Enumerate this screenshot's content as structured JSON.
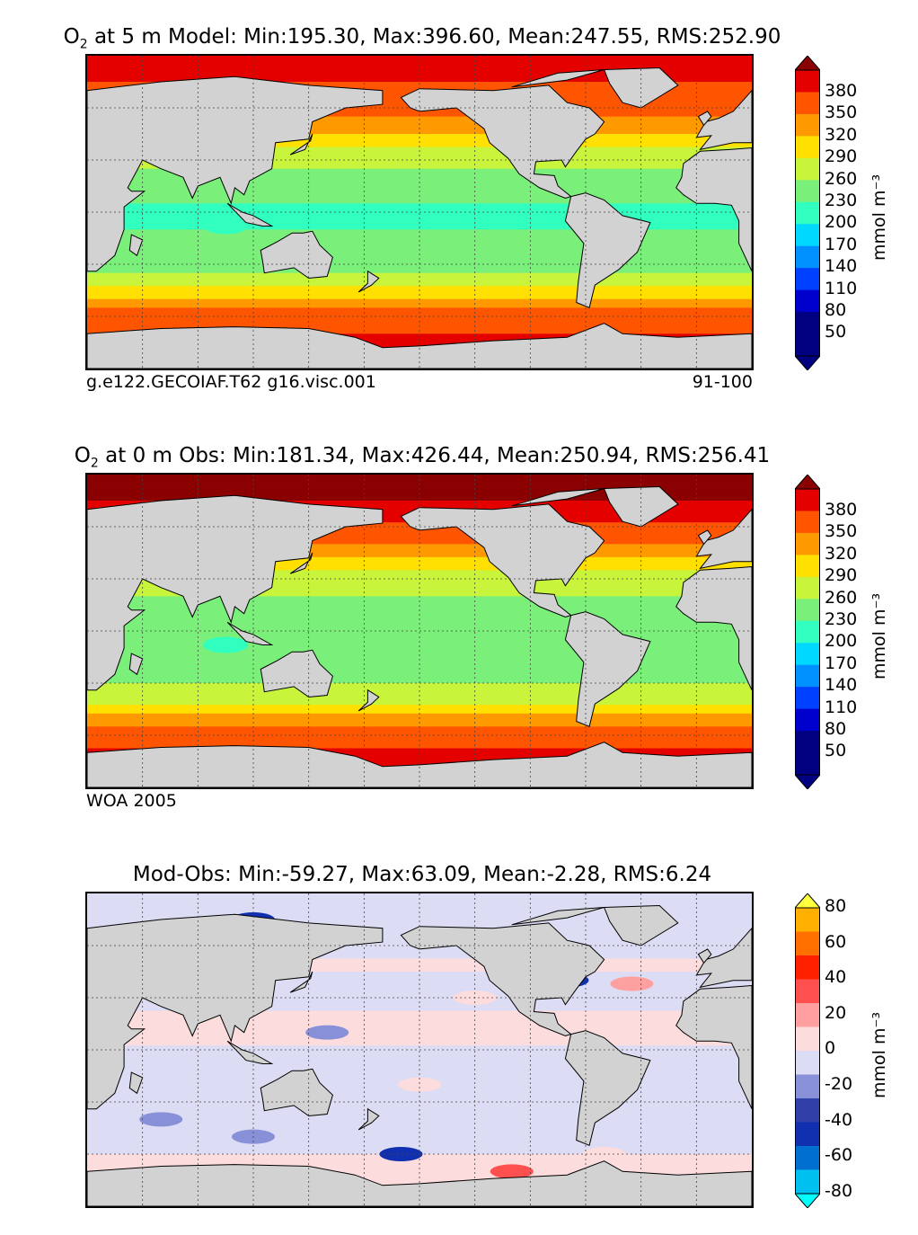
{
  "panels": [
    {
      "title_prefix": "O",
      "title_sub": "2",
      "title_rest": " at 5 m Model: Min:195.30, Max:396.60, Mean:247.55, RMS:252.90",
      "caption_left": "g.e122.GECOIAF.T62 g16.visc.001",
      "caption_right": "91-100",
      "cbar_label": "mmol m⁻³",
      "cbar_ticks": [
        "380",
        "350",
        "320",
        "290",
        "260",
        "230",
        "200",
        "170",
        "140",
        "110",
        "80",
        "50"
      ]
    },
    {
      "title_prefix": "O",
      "title_sub": "2",
      "title_rest": " at 0 m Obs: Min:181.34, Max:426.44, Mean:250.94, RMS:256.41",
      "caption_left": "WOA 2005",
      "caption_right": "",
      "cbar_label": "mmol m⁻³",
      "cbar_ticks": [
        "380",
        "350",
        "320",
        "290",
        "260",
        "230",
        "200",
        "170",
        "140",
        "110",
        "80",
        "50"
      ]
    },
    {
      "title_prefix": "",
      "title_sub": "",
      "title_rest": "Mod-Obs: Min:-59.27, Max:63.09, Mean:-2.28, RMS:6.24",
      "caption_left": "",
      "caption_right": "",
      "cbar_label": "mmol m⁻³",
      "cbar_ticks": [
        "80",
        "60",
        "40",
        "20",
        "0",
        "-20",
        "-40",
        "-60",
        "-80"
      ]
    }
  ],
  "chart_data": [
    {
      "type": "heatmap",
      "title": "O2 at 5 m Model: Min:195.30, Max:396.60, Mean:247.55, RMS:252.90",
      "variable": "O2",
      "depth": "5 m",
      "source": "Model",
      "stats": {
        "min": 195.3,
        "max": 396.6,
        "mean": 247.55,
        "rms": 252.9
      },
      "caption": [
        "g.e122.GECOIAF.T62 g16.visc.001",
        "91-100"
      ],
      "colorbar": {
        "label": "mmol m-3",
        "ticks": [
          380,
          350,
          320,
          290,
          260,
          230,
          200,
          170,
          140,
          110,
          80,
          50
        ],
        "extend": "both"
      },
      "colors": [
        "#000080",
        "#0000cd",
        "#0040ff",
        "#0090ff",
        "#00d8ff",
        "#30ffc0",
        "#7af07a",
        "#c8f53c",
        "#ffe000",
        "#ff9900",
        "#ff5500",
        "#e50000",
        "#8b0000"
      ],
      "zonal_bands": [
        {
          "lat": 80,
          "value": 360
        },
        {
          "lat": 50,
          "value": 310
        },
        {
          "lat": 35,
          "value": 250
        },
        {
          "lat": 10,
          "value": 205
        },
        {
          "lat": 0,
          "value": 195
        },
        {
          "lat": -20,
          "value": 205
        },
        {
          "lat": -40,
          "value": 240
        },
        {
          "lat": -55,
          "value": 320
        },
        {
          "lat": -70,
          "value": 350
        }
      ]
    },
    {
      "type": "heatmap",
      "title": "O2 at 0 m Obs: Min:181.34, Max:426.44, Mean:250.94, RMS:256.41",
      "variable": "O2",
      "depth": "0 m",
      "source": "Obs",
      "stats": {
        "min": 181.34,
        "max": 426.44,
        "mean": 250.94,
        "rms": 256.41
      },
      "caption": [
        "WOA 2005"
      ],
      "colorbar": {
        "label": "mmol m-3",
        "ticks": [
          380,
          350,
          320,
          290,
          260,
          230,
          200,
          170,
          140,
          110,
          80,
          50
        ],
        "extend": "both"
      },
      "zonal_bands": [
        {
          "lat": 80,
          "value": 390
        },
        {
          "lat": 50,
          "value": 320
        },
        {
          "lat": 35,
          "value": 255
        },
        {
          "lat": 10,
          "value": 210
        },
        {
          "lat": 0,
          "value": 205
        },
        {
          "lat": -20,
          "value": 210
        },
        {
          "lat": -40,
          "value": 250
        },
        {
          "lat": -55,
          "value": 325
        },
        {
          "lat": -70,
          "value": 355
        }
      ]
    },
    {
      "type": "heatmap",
      "title": "Mod-Obs: Min:-59.27, Max:63.09, Mean:-2.28, RMS:6.24",
      "stats": {
        "min": -59.27,
        "max": 63.09,
        "mean": -2.28,
        "rms": 6.24
      },
      "colorbar": {
        "label": "mmol m-3",
        "ticks": [
          80,
          60,
          40,
          20,
          0,
          -20,
          -40,
          -60,
          -80
        ],
        "extend": "both"
      },
      "colors": [
        "#00ffff",
        "#00c0f0",
        "#0070d0",
        "#1030b0",
        "#3040a8",
        "#8890d8",
        "#dcdcf4",
        "#fcdcdc",
        "#ffa0a0",
        "#ff5050",
        "#ff2000",
        "#ff7000",
        "#ffb000",
        "#ffff40"
      ]
    }
  ]
}
